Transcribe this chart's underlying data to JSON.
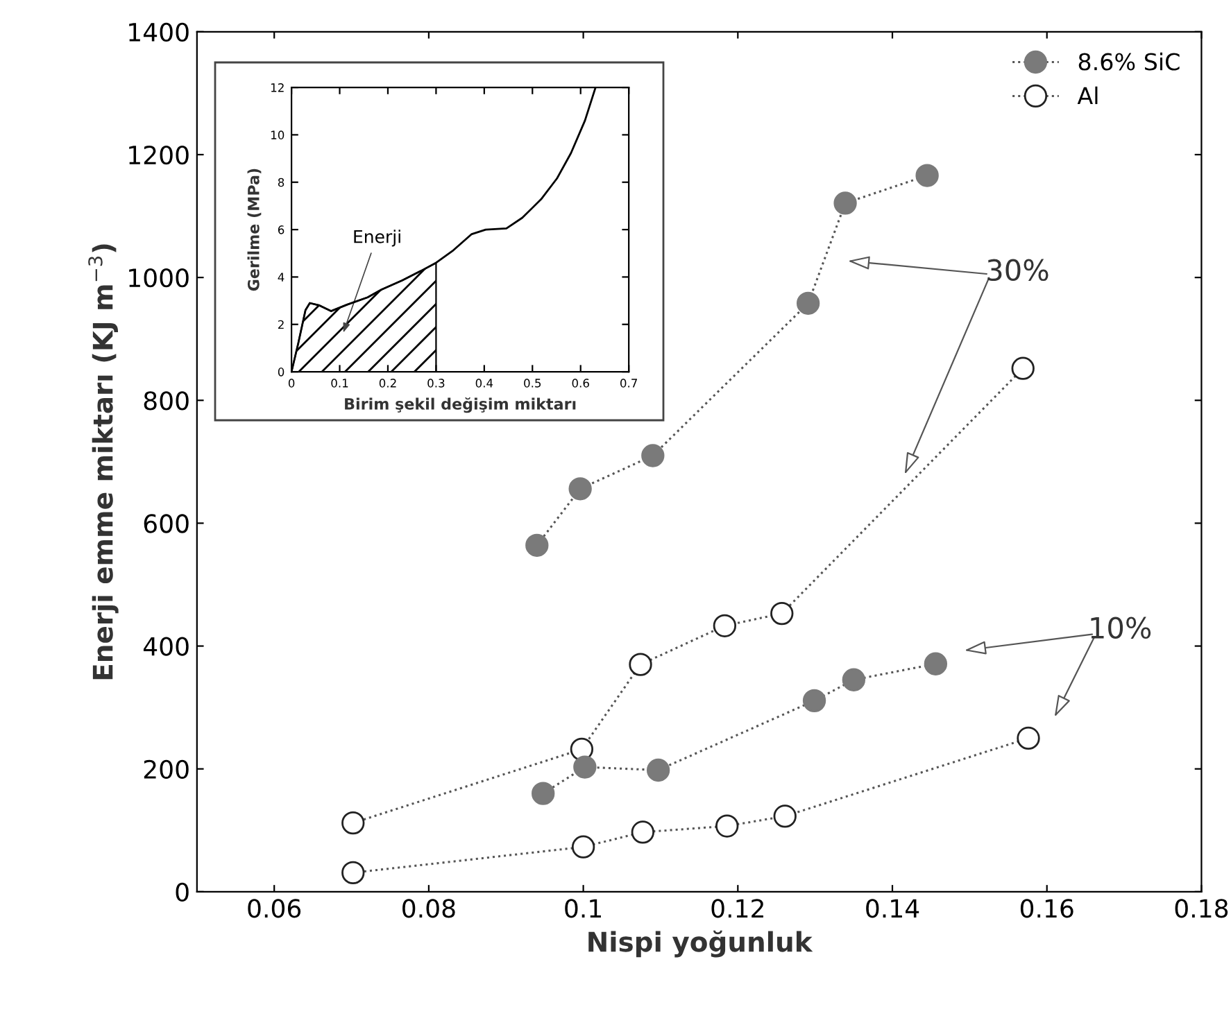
{
  "chart_data": [
    {
      "type": "line",
      "xlabel": "Nispi yoğunluk",
      "ylabel": "Enerji emme miktarı (KJ m$^{−3}$)",
      "xlim": [
        0.05,
        0.18
      ],
      "ylim": [
        0,
        1400
      ],
      "xticks": [
        0.06,
        0.08,
        0.1,
        0.12,
        0.14,
        0.16,
        0.18
      ],
      "yticks": [
        0,
        200,
        400,
        600,
        800,
        1000,
        1200,
        1400
      ],
      "grid": false,
      "legend": "top right",
      "marker": "circle",
      "line_style": "dotted",
      "series": [
        {
          "name": "8.6% SiC",
          "color": "#7a7a7a",
          "x": [
            0.094,
            0.0996,
            0.109,
            0.1291,
            0.1339,
            0.1445
          ],
          "values": [
            564,
            656,
            710,
            958,
            1121,
            1166
          ]
        },
        {
          "name": "Al",
          "color": "#ffffff",
          "x": [
            0.0702,
            0.0998,
            0.1074,
            0.1183,
            0.1257,
            0.1569
          ],
          "values": [
            112,
            232,
            370,
            433,
            453,
            852
          ]
        },
        {
          "color": "#7a7a7a",
          "x": [
            0.0948,
            0.1002,
            0.1097,
            0.1299,
            0.135,
            0.1456
          ],
          "values": [
            160,
            203,
            198,
            311,
            345,
            371
          ]
        },
        {
          "color": "#ffffff",
          "x": [
            0.0702,
            0.1,
            0.1077,
            0.1186,
            0.1261,
            0.1576
          ],
          "values": [
            31,
            73,
            97,
            107,
            123,
            250
          ]
        }
      ],
      "annotations": [
        "30%",
        "10%"
      ]
    },
    {
      "type": "line",
      "xlabel": "Birim şekil değişim miktarı",
      "ylabel": "Gerilme (MPa)",
      "xlim": [
        0,
        0.7
      ],
      "ylim": [
        0,
        12
      ],
      "xticks": [
        0,
        0.1,
        0.2,
        0.3,
        0.4,
        0.5,
        0.6,
        0.7
      ],
      "yticks": [
        0,
        2,
        4,
        6,
        8,
        10,
        12
      ],
      "grid": false,
      "series": [
        {
          "color": "#000000",
          "x": [
            0,
            0.014,
            0.029,
            0.038,
            0.058,
            0.082,
            0.115,
            0.158,
            0.187,
            0.23,
            0.268,
            0.3,
            0.336,
            0.374,
            0.403,
            0.446,
            0.479,
            0.518,
            0.551,
            0.58,
            0.609,
            0.631
          ],
          "values": [
            0,
            1.2,
            2.6,
            2.9,
            2.8,
            2.56,
            2.83,
            3.14,
            3.47,
            3.86,
            4.25,
            4.6,
            5.13,
            5.81,
            6.0,
            6.05,
            6.5,
            7.28,
            8.16,
            9.23,
            10.6,
            12.0
          ]
        },
        {
          "type": "area",
          "color": "#000000",
          "x": [
            0,
            0.014,
            0.029,
            0.038,
            0.058,
            0.082,
            0.115,
            0.158,
            0.187,
            0.23,
            0.268,
            0.3
          ],
          "values": [
            0,
            1.2,
            2.6,
            2.9,
            2.8,
            2.56,
            2.83,
            3.14,
            3.47,
            3.86,
            4.25,
            4.6
          ]
        }
      ],
      "annotations": [
        "Enerji"
      ]
    }
  ]
}
